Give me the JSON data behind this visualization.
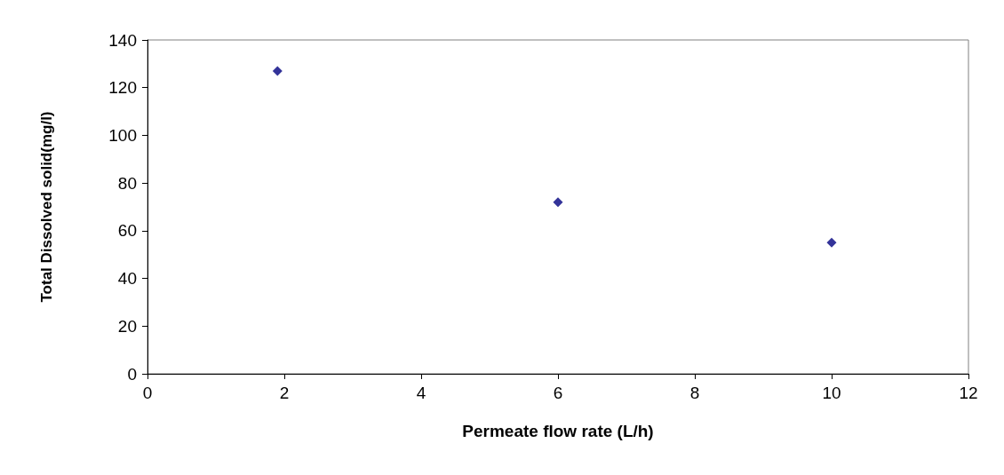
{
  "chart_data": {
    "type": "scatter",
    "xlabel": "Permeate flow rate (L/h)",
    "ylabel": "Total Dissolved solid(mg/l)",
    "x": [
      1.9,
      6,
      10
    ],
    "series": [
      {
        "color": "#000080",
        "values": [
          127,
          72,
          55
        ]
      }
    ],
    "xlim": [
      0,
      12
    ],
    "xticks": [
      0,
      2,
      4,
      6,
      8,
      10,
      12
    ],
    "ylim": [
      0,
      140
    ],
    "yticks": [
      0,
      20,
      40,
      60,
      80,
      100,
      120,
      140
    ],
    "marker": "diamond"
  }
}
